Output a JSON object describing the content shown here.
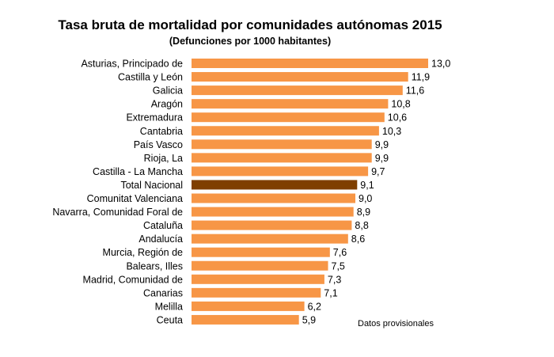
{
  "chart_data": {
    "type": "bar",
    "orientation": "horizontal",
    "title": "Tasa bruta de mortalidad por comunidades autónomas 2015",
    "subtitle": "(Defunciones por 1000 habitantes)",
    "categories": [
      "Asturias, Principado de",
      "Castilla y León",
      "Galicia",
      "Aragón",
      "Extremadura",
      "Cantabria",
      "País Vasco",
      "Rioja, La",
      "Castilla - La Mancha",
      "Total Nacional",
      "Comunitat Valenciana",
      "Navarra, Comunidad Foral de",
      "Cataluña",
      "Andalucía",
      "Murcia, Región de",
      "Balears, Illes",
      "Madrid, Comunidad de",
      "Canarias",
      "Melilla",
      "Ceuta"
    ],
    "values": [
      13.0,
      11.9,
      11.6,
      10.8,
      10.6,
      10.3,
      9.9,
      9.9,
      9.7,
      9.1,
      9.0,
      8.9,
      8.8,
      8.6,
      7.6,
      7.5,
      7.3,
      7.1,
      6.2,
      5.9
    ],
    "value_labels": [
      "13,0",
      "11,9",
      "11,6",
      "10,8",
      "10,6",
      "10,3",
      "9,9",
      "9,9",
      "9,7",
      "9,1",
      "9,0",
      "8,9",
      "8,8",
      "8,6",
      "7,6",
      "7,5",
      "7,3",
      "7,1",
      "6,2",
      "5,9"
    ],
    "highlight_category": "Total Nacional",
    "bar_color": "#f79646",
    "highlight_color": "#7f3f00",
    "xlim": [
      0,
      13.0
    ],
    "grid": false,
    "legend": "none",
    "note": "Datos provisionales"
  }
}
